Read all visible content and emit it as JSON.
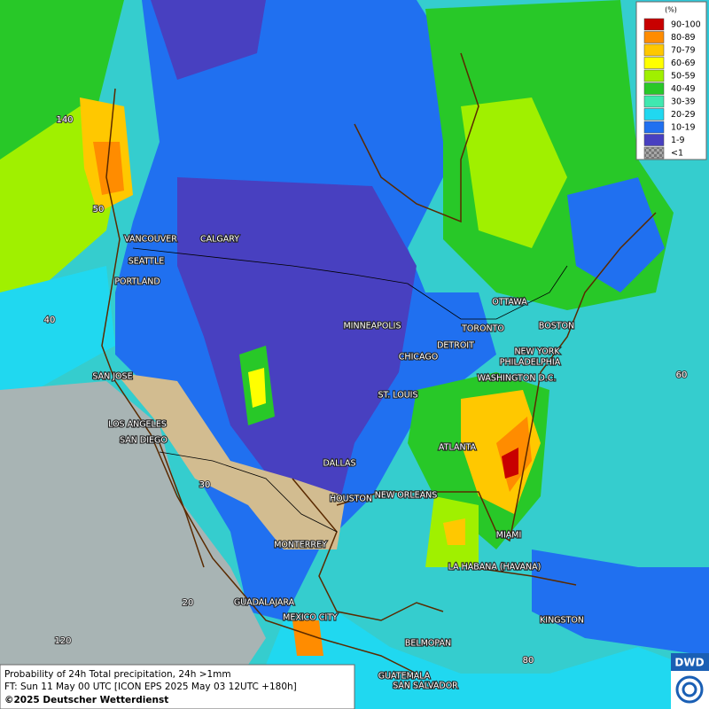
{
  "legend": {
    "title": "(%)",
    "items": [
      {
        "label": "90-100",
        "color": "#c80000"
      },
      {
        "label": "80-89",
        "color": "#ff8c00"
      },
      {
        "label": "70-79",
        "color": "#ffc800"
      },
      {
        "label": "60-69",
        "color": "#ffff00"
      },
      {
        "label": "50-59",
        "color": "#a0f000"
      },
      {
        "label": "40-49",
        "color": "#28c828"
      },
      {
        "label": "30-39",
        "color": "#40e8b0"
      },
      {
        "label": "20-29",
        "color": "#20d8f0"
      },
      {
        "label": "10-19",
        "color": "#2070f0"
      },
      {
        "label": "1-9",
        "color": "#4840c0"
      },
      {
        "label": "<1",
        "color": "#a8a8a8"
      }
    ]
  },
  "cities": [
    "VANCOUVER",
    "CALGARY",
    "SEATTLE",
    "PORTLAND",
    "MINNEAPOLIS",
    "OTTAWA",
    "TORONTO",
    "BOSTON",
    "DETROIT",
    "CHICAGO",
    "NEW YORK",
    "PHILADELPHIA",
    "WASHINGTON D.C.",
    "SAN JOSE",
    "ST. LOUIS",
    "LOS ANGELES",
    "SAN DIEGO",
    "ATLANTA",
    "DALLAS",
    "HOUSTON",
    "NEW ORLEANS",
    "MONTERREY",
    "MIAMI",
    "LA HABANA (HAVANA)",
    "GUADALAJARA",
    "MEXICO CITY",
    "KINGSTON",
    "BELMOPAN",
    "GUATEMALA",
    "SAN SALVADOR"
  ],
  "grid_labels": [
    "140",
    "50",
    "40",
    "30",
    "20",
    "120",
    "60",
    "80"
  ],
  "footer": {
    "lines": [
      "Probability of 24h Total precipitation, 24h >1mm",
      "FT: Sun 11 May 00 UTC [ICON EPS 2025 May 03 12UTC +180h]",
      "©2025 Deutscher Wetterdienst"
    ]
  },
  "logo": "DWD"
}
